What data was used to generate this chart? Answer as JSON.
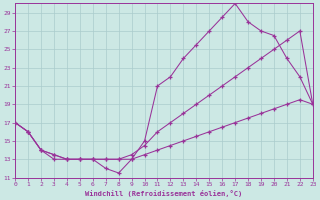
{
  "background_color": "#cce8e4",
  "grid_color": "#aacccc",
  "line_color": "#993399",
  "xlim": [
    0,
    23
  ],
  "ylim": [
    11,
    30
  ],
  "xticks": [
    0,
    1,
    2,
    3,
    4,
    5,
    6,
    7,
    8,
    9,
    10,
    11,
    12,
    13,
    14,
    15,
    16,
    17,
    18,
    19,
    20,
    21,
    22,
    23
  ],
  "yticks": [
    11,
    13,
    15,
    17,
    19,
    21,
    23,
    25,
    27,
    29
  ],
  "xlabel": "Windchill (Refroidissement éolien,°C)",
  "series": [
    {
      "x": [
        0,
        1,
        2,
        3,
        4,
        5,
        6,
        7,
        8,
        9,
        10,
        11,
        12,
        13,
        14,
        15,
        16,
        17,
        18,
        19,
        20,
        21,
        22,
        23
      ],
      "y": [
        17,
        16,
        14,
        13,
        13,
        13,
        13,
        12,
        11.5,
        13,
        15,
        21,
        22,
        24,
        25.5,
        27,
        28.5,
        30,
        28,
        27,
        26.5,
        24,
        22,
        19
      ]
    },
    {
      "x": [
        0,
        1,
        2,
        3,
        4,
        5,
        6,
        7,
        8,
        9,
        10,
        11,
        12,
        13,
        14,
        15,
        16,
        17,
        18,
        19,
        20,
        21,
        22,
        23
      ],
      "y": [
        17,
        16,
        14,
        13.5,
        13,
        13,
        13,
        13,
        13,
        13.5,
        14.5,
        16,
        17,
        18,
        19,
        20,
        21,
        22,
        23,
        24,
        25,
        26,
        27,
        19
      ]
    },
    {
      "x": [
        0,
        1,
        2,
        3,
        4,
        5,
        6,
        7,
        8,
        9,
        10,
        11,
        12,
        13,
        14,
        15,
        16,
        17,
        18,
        19,
        20,
        21,
        22,
        23
      ],
      "y": [
        17,
        16,
        14,
        13.5,
        13,
        13,
        13,
        13,
        13,
        13,
        13.5,
        14,
        14.5,
        15,
        15.5,
        16,
        16.5,
        17,
        17.5,
        18,
        18.5,
        19,
        19.5,
        19
      ]
    }
  ]
}
